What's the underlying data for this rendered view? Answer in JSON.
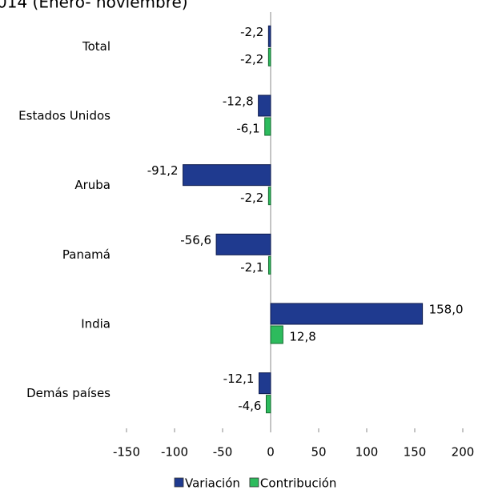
{
  "chart_data": {
    "type": "hbar",
    "title": "014 (Enero- noviembre)",
    "categories": [
      "Total",
      "Estados Unidos",
      "Aruba",
      "Panamá",
      "India",
      "Demás países"
    ],
    "series": [
      {
        "name": "Variación",
        "color": "#1f3a8f",
        "values": [
          -2.2,
          -12.8,
          -91.2,
          -56.6,
          158.0,
          -12.1
        ],
        "value_labels": [
          "-2,2",
          "-12,8",
          "-91,2",
          "-56,6",
          "158,0",
          "-12,1"
        ]
      },
      {
        "name": "Contribución",
        "color": "#2dbb5d",
        "values": [
          -2.2,
          -6.1,
          -2.2,
          -2.1,
          12.8,
          -4.6
        ],
        "value_labels": [
          "-2,2",
          "-6,1",
          "-2,2",
          "-2,1",
          "12,8",
          "-4,6"
        ]
      }
    ],
    "xlim": [
      -150,
      200
    ],
    "xticks": [
      -150,
      -100,
      -50,
      0,
      50,
      100,
      150,
      200
    ]
  }
}
